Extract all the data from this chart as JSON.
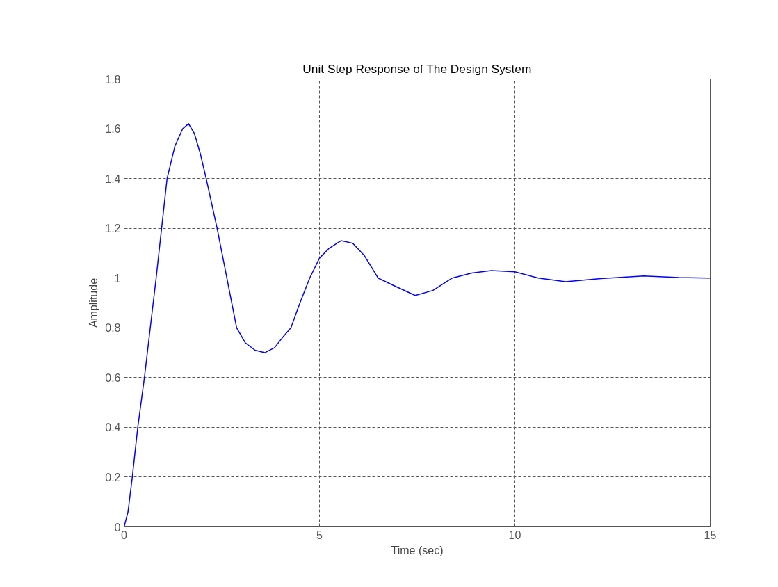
{
  "chart_data": {
    "type": "line",
    "title": "Unit Step Response of The Design System",
    "xlabel": "Time (sec)",
    "ylabel": "Amplitude",
    "x": [
      0,
      0.1,
      0.21,
      0.35,
      0.52,
      0.67,
      0.82,
      0.96,
      1.1,
      1.3,
      1.5,
      1.65,
      1.8,
      1.95,
      2.1,
      2.38,
      2.63,
      2.88,
      3.1,
      3.35,
      3.6,
      3.85,
      4.05,
      4.27,
      4.5,
      4.75,
      5.0,
      5.25,
      5.55,
      5.85,
      6.15,
      6.5,
      6.9,
      7.45,
      7.9,
      8.4,
      8.9,
      9.4,
      10.0,
      10.6,
      11.3,
      12.2,
      13.3,
      14.2,
      15
    ],
    "series": [
      {
        "color": "#0000ff",
        "values": [
          0,
          0.06,
          0.2,
          0.4,
          0.6,
          0.8,
          1.0,
          1.2,
          1.4,
          1.53,
          1.6,
          1.62,
          1.58,
          1.5,
          1.4,
          1.2,
          1.0,
          0.8,
          0.74,
          0.71,
          0.7,
          0.72,
          0.76,
          0.8,
          0.9,
          1.0,
          1.08,
          1.12,
          1.15,
          1.14,
          1.09,
          1.0,
          0.97,
          0.93,
          0.95,
          1.0,
          1.02,
          1.03,
          1.025,
          1.0,
          0.985,
          0.998,
          1.008,
          1.002,
          1.0
        ]
      }
    ],
    "xlim": [
      0,
      15
    ],
    "ylim": [
      0,
      1.8
    ],
    "xticks": [
      0,
      5,
      10,
      15
    ],
    "yticks": [
      0,
      0.2,
      0.4,
      0.6,
      0.8,
      1,
      1.2,
      1.4,
      1.6,
      1.8
    ],
    "grid": true,
    "line_style": "solid",
    "marker": "none"
  }
}
